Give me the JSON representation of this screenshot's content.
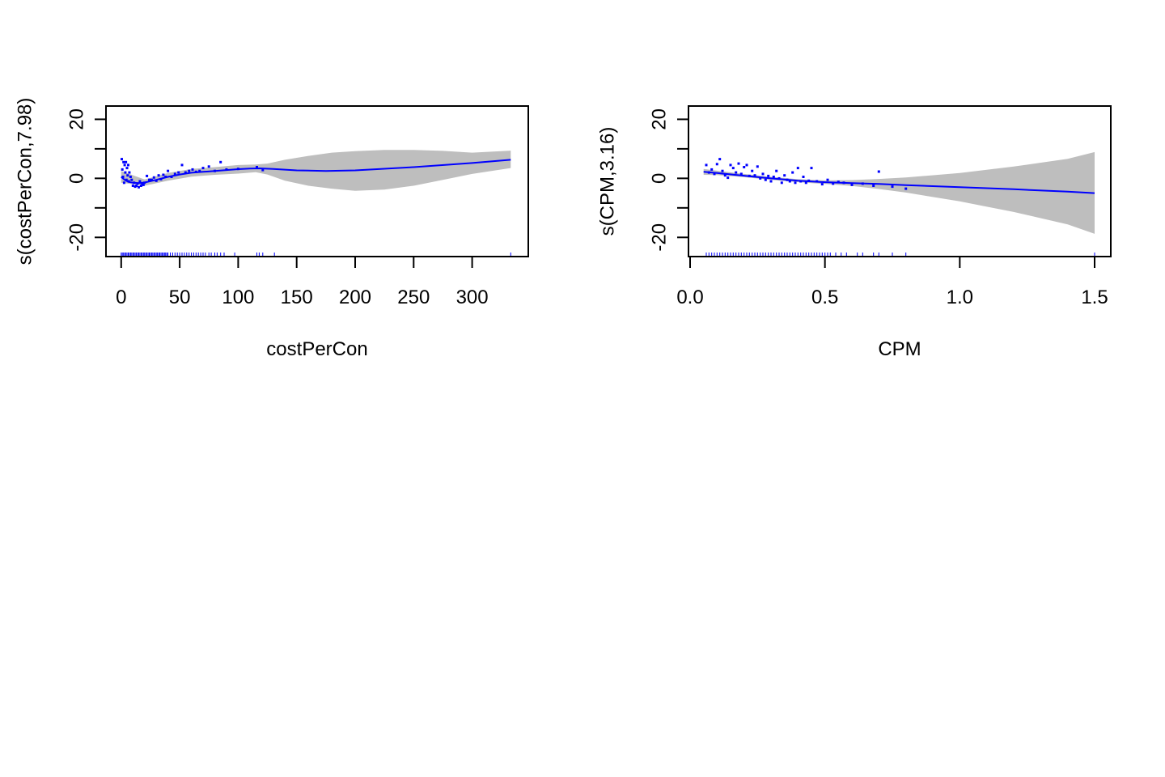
{
  "colors": {
    "background": "#ffffff",
    "smooth_line": "#0000ff",
    "points": "#0000ff",
    "rug": "#0000ff",
    "confidence_band": "#bebebe",
    "axes": "#000000"
  },
  "chart_data": [
    {
      "type": "line",
      "xlabel": "costPerCon",
      "ylabel": "s(costPerCon,7.98)",
      "xlim": [
        -13,
        348
      ],
      "ylim": [
        -26.5,
        24.5
      ],
      "x_ticks": [
        0,
        50,
        100,
        150,
        200,
        250,
        300
      ],
      "x_tick_labels": [
        "0",
        "50",
        "100",
        "150",
        "200",
        "250",
        "300"
      ],
      "y_ticks": [
        -20,
        -10,
        0,
        10,
        20
      ],
      "y_tick_labels": [
        "-20",
        "",
        "0",
        "",
        "20"
      ],
      "grid": false,
      "legend": "none",
      "series": [
        {
          "kind": "smooth",
          "x": [
            0,
            3,
            6,
            10,
            15,
            20,
            30,
            40,
            50,
            60,
            70,
            80,
            90,
            100,
            110,
            118,
            130,
            150,
            175,
            200,
            250,
            300,
            333
          ],
          "y": [
            0.5,
            -0.5,
            -1.2,
            -1.5,
            -1.6,
            -1.4,
            -0.5,
            0.5,
            1.3,
            1.9,
            2.2,
            2.5,
            2.8,
            3.1,
            3.3,
            3.4,
            3.2,
            2.7,
            2.5,
            2.7,
            3.8,
            5.2,
            6.3
          ]
        },
        {
          "kind": "band",
          "x": [
            0,
            20,
            40,
            60,
            80,
            100,
            115,
            125,
            140,
            160,
            180,
            200,
            225,
            250,
            275,
            300,
            333
          ],
          "lower": [
            -1.5,
            -2.5,
            -0.8,
            0.6,
            1.2,
            1.6,
            2.1,
            1.3,
            -0.8,
            -2.5,
            -3.5,
            -4.2,
            -3.8,
            -2.5,
            -0.5,
            1.5,
            3.5
          ],
          "upper": [
            2.5,
            -0.4,
            1.8,
            3.2,
            3.8,
            4.5,
            4.7,
            5.0,
            6.3,
            7.6,
            8.7,
            9.2,
            9.6,
            9.6,
            9.3,
            8.7,
            9.4
          ]
        },
        {
          "kind": "partial_residuals",
          "x": [
            0.5,
            1,
            1.5,
            2,
            2.5,
            3,
            3.5,
            4,
            4.5,
            5,
            5.5,
            6,
            6.5,
            7,
            8,
            9,
            10,
            11,
            12,
            13,
            14,
            15,
            16,
            17,
            18,
            19,
            20,
            22,
            24,
            26,
            28,
            30,
            32,
            34,
            36,
            38,
            40,
            43,
            46,
            49,
            52,
            55,
            58,
            61,
            64,
            67,
            70,
            75,
            80,
            85,
            90,
            100,
            116,
            121
          ],
          "y": [
            6.5,
            3,
            0.5,
            5.5,
            -1.5,
            4.5,
            2,
            5.5,
            -0.5,
            3.5,
            1,
            4.5,
            -1,
            2,
            0.5,
            -0.5,
            -2.5,
            -1.5,
            -2.8,
            -2.5,
            -1.8,
            -3,
            -1,
            -2.5,
            -2,
            -2.2,
            -1.5,
            0.8,
            -0.5,
            -0.5,
            0.3,
            -0.8,
            1,
            -0.3,
            1.2,
            0.5,
            2.5,
            0.5,
            1.5,
            2,
            4.5,
            2,
            2.5,
            3,
            2.2,
            2.5,
            3.5,
            4,
            2.5,
            5.5,
            3,
            3.2,
            3.8,
            2.8
          ]
        },
        {
          "kind": "rug",
          "x": [
            0,
            1,
            2,
            3,
            4,
            5,
            6,
            7,
            8,
            9,
            10,
            11,
            12,
            13,
            14,
            15,
            16,
            17,
            18,
            19,
            20,
            21,
            22,
            23,
            24,
            25,
            26,
            27,
            28,
            29,
            30,
            31,
            32,
            33,
            34,
            35,
            36,
            37,
            38,
            39,
            40,
            42,
            44,
            46,
            48,
            50,
            52,
            54,
            56,
            58,
            60,
            62,
            64,
            66,
            68,
            70,
            72,
            75,
            77,
            80,
            82,
            85,
            88,
            97,
            116,
            118,
            121,
            131,
            333
          ]
        }
      ]
    },
    {
      "type": "line",
      "xlabel": "CPM",
      "ylabel": "s(CPM,3.16)",
      "xlim": [
        -0.006,
        1.56
      ],
      "ylim": [
        -26.5,
        24.5
      ],
      "x_ticks": [
        0.0,
        0.5,
        1.0,
        1.5
      ],
      "x_tick_labels": [
        "0.0",
        "0.5",
        "1.0",
        "1.5"
      ],
      "y_ticks": [
        -20,
        -10,
        0,
        10,
        20
      ],
      "y_tick_labels": [
        "-20",
        "",
        "0",
        "",
        "20"
      ],
      "grid": false,
      "legend": "none",
      "series": [
        {
          "kind": "smooth",
          "x": [
            0.05,
            0.1,
            0.2,
            0.3,
            0.4,
            0.5,
            0.6,
            0.7,
            0.8,
            1.0,
            1.2,
            1.4,
            1.5
          ],
          "y": [
            2.2,
            1.8,
            0.9,
            0.0,
            -0.8,
            -1.3,
            -1.6,
            -1.9,
            -2.3,
            -3.0,
            -3.7,
            -4.5,
            -5.0
          ]
        },
        {
          "kind": "band",
          "x": [
            0.05,
            0.1,
            0.2,
            0.3,
            0.4,
            0.5,
            0.6,
            0.7,
            0.8,
            1.0,
            1.2,
            1.4,
            1.5
          ],
          "lower": [
            1.2,
            1.1,
            0.4,
            -0.5,
            -1.3,
            -1.9,
            -2.6,
            -3.6,
            -4.8,
            -7.8,
            -11.4,
            -15.6,
            -18.8
          ],
          "upper": [
            3.2,
            2.6,
            1.5,
            0.5,
            -0.3,
            -0.7,
            -0.6,
            -0.2,
            0.3,
            1.8,
            4.0,
            6.6,
            8.9
          ]
        },
        {
          "kind": "partial_residuals",
          "x": [
            0.06,
            0.07,
            0.08,
            0.09,
            0.1,
            0.11,
            0.12,
            0.13,
            0.14,
            0.15,
            0.16,
            0.17,
            0.18,
            0.19,
            0.2,
            0.21,
            0.22,
            0.23,
            0.24,
            0.25,
            0.26,
            0.27,
            0.28,
            0.29,
            0.3,
            0.31,
            0.32,
            0.33,
            0.34,
            0.35,
            0.36,
            0.37,
            0.38,
            0.39,
            0.4,
            0.41,
            0.42,
            0.43,
            0.44,
            0.45,
            0.47,
            0.49,
            0.51,
            0.53,
            0.55,
            0.57,
            0.6,
            0.64,
            0.68,
            0.7,
            0.75,
            0.8
          ],
          "y": [
            4.5,
            2,
            3,
            1.5,
            4.8,
            6.5,
            2.5,
            1,
            0.2,
            4.5,
            3.5,
            2,
            5,
            1.5,
            3.8,
            4.5,
            0.8,
            2.5,
            1,
            4,
            0,
            1.5,
            -0.5,
            0.8,
            -1,
            0.5,
            2.5,
            0,
            -1.5,
            1,
            -0.5,
            -1,
            2,
            -1.5,
            3.5,
            -1,
            0.5,
            -1.5,
            -0.8,
            3.5,
            -1,
            -2,
            -0.5,
            -1.8,
            -1.2,
            -1.5,
            -2.2,
            -1.8,
            -2.5,
            2.3,
            -2.8,
            -3.5
          ]
        },
        {
          "kind": "rug",
          "x": [
            0.06,
            0.07,
            0.08,
            0.09,
            0.1,
            0.11,
            0.12,
            0.13,
            0.14,
            0.15,
            0.16,
            0.17,
            0.18,
            0.19,
            0.2,
            0.21,
            0.22,
            0.23,
            0.24,
            0.25,
            0.26,
            0.27,
            0.28,
            0.29,
            0.3,
            0.31,
            0.32,
            0.33,
            0.34,
            0.35,
            0.36,
            0.37,
            0.38,
            0.39,
            0.4,
            0.41,
            0.42,
            0.43,
            0.44,
            0.45,
            0.46,
            0.47,
            0.48,
            0.49,
            0.5,
            0.51,
            0.52,
            0.54,
            0.56,
            0.58,
            0.62,
            0.64,
            0.68,
            0.7,
            0.75,
            0.8,
            1.5
          ]
        }
      ]
    }
  ]
}
